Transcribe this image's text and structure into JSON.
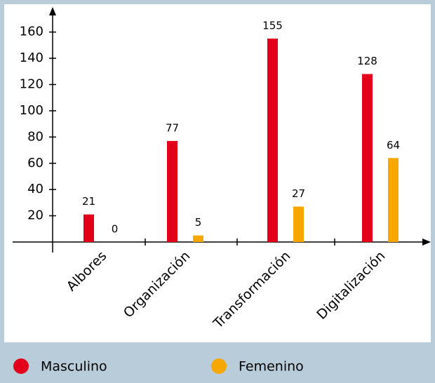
{
  "chart_data": {
    "type": "bar",
    "categories": [
      "Albores",
      "Organización",
      "Transformación",
      "Digitalización"
    ],
    "series": [
      {
        "name": "Masculino",
        "color": "#e2001a",
        "values": [
          21,
          77,
          155,
          128
        ]
      },
      {
        "name": "Femenino",
        "color": "#f6a800",
        "values": [
          0,
          5,
          27,
          64
        ]
      }
    ],
    "ylim": [
      0,
      178
    ],
    "yticks": [
      20,
      40,
      60,
      80,
      100,
      120,
      140,
      160
    ]
  }
}
